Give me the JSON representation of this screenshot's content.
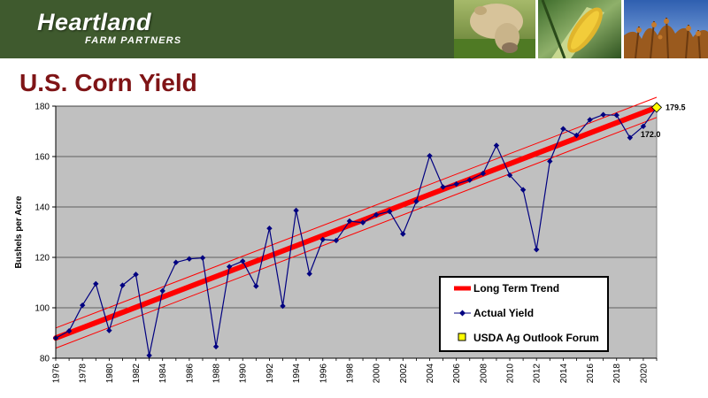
{
  "header": {
    "brand_name": "Heartland",
    "brand_sub": "FARM PARTNERS",
    "photos": [
      "cow-photo",
      "corn-photo",
      "soybean-photo"
    ]
  },
  "slide": {
    "title": "U.S. Corn Yield"
  },
  "colors": {
    "banner": "#3f5a2e",
    "title": "#7f1416",
    "plot_bg": "#c0c0c0",
    "trend": "#ff0000",
    "actual": "#000080",
    "forecast": "#ffff00"
  },
  "chart_data": {
    "type": "line",
    "title": "",
    "xlabel": "",
    "ylabel": "Bushels per Acre",
    "xlim": [
      1976,
      2021
    ],
    "ylim": [
      80,
      180
    ],
    "yticks": [
      80,
      100,
      120,
      140,
      160,
      180
    ],
    "xticks": [
      1976,
      1978,
      1980,
      1982,
      1984,
      1986,
      1988,
      1990,
      1992,
      1994,
      1996,
      1998,
      2000,
      2002,
      2004,
      2006,
      2008,
      2010,
      2012,
      2014,
      2016,
      2018,
      2020
    ],
    "grid": true,
    "legend_position": "bottom-right",
    "series": [
      {
        "name": "Long Term Trend",
        "style": "thick-line",
        "x": [
          1976,
          2021
        ],
        "y": [
          88.0,
          179.5
        ],
        "band": {
          "lower": [
            84.0,
            175.5
          ],
          "upper": [
            92.0,
            183.5
          ]
        }
      },
      {
        "name": "Actual Yield",
        "style": "line-diamond",
        "x": [
          1976,
          1977,
          1978,
          1979,
          1980,
          1981,
          1982,
          1983,
          1984,
          1985,
          1986,
          1987,
          1988,
          1989,
          1990,
          1991,
          1992,
          1993,
          1994,
          1995,
          1996,
          1997,
          1998,
          1999,
          2000,
          2001,
          2002,
          2003,
          2004,
          2005,
          2006,
          2007,
          2008,
          2009,
          2010,
          2011,
          2012,
          2013,
          2014,
          2015,
          2016,
          2017,
          2018,
          2019,
          2020
        ],
        "y": [
          88.0,
          90.8,
          101.0,
          109.5,
          91.0,
          108.9,
          113.2,
          81.1,
          106.7,
          118.0,
          119.4,
          119.8,
          84.6,
          116.3,
          118.5,
          108.6,
          131.5,
          100.7,
          138.6,
          113.5,
          127.1,
          126.7,
          134.4,
          133.8,
          136.9,
          138.2,
          129.3,
          142.2,
          160.3,
          147.9,
          149.1,
          150.7,
          153.3,
          164.4,
          152.6,
          146.8,
          123.1,
          158.1,
          171.0,
          168.4,
          174.6,
          176.6,
          176.4,
          167.5,
          172.0
        ]
      },
      {
        "name": "USDA Ag Outlook Forum",
        "style": "marker-square",
        "x": [
          2021
        ],
        "y": [
          179.5
        ]
      }
    ],
    "annotations": [
      {
        "text": "179.5",
        "x": 2021,
        "y": 179.5
      },
      {
        "text": "172.0",
        "x": 2020,
        "y": 172.0
      }
    ]
  }
}
